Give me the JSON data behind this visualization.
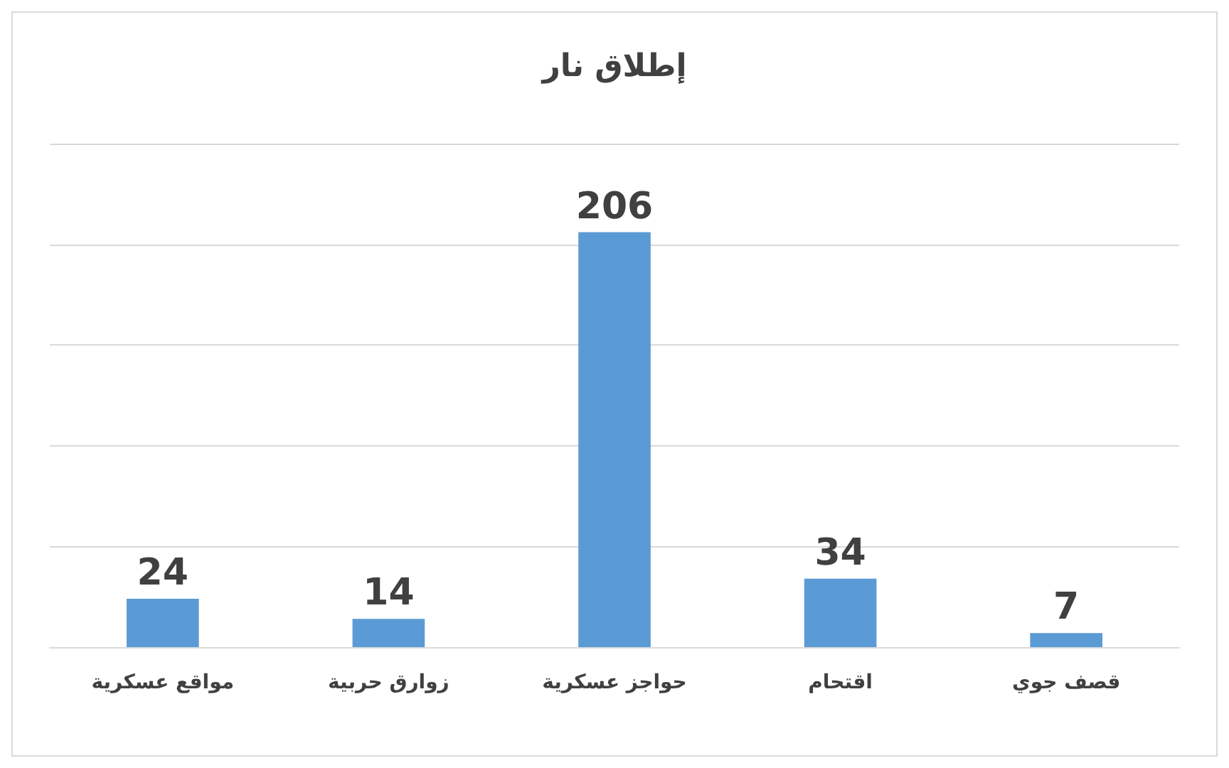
{
  "chart_data": {
    "type": "bar",
    "title": "إطلاق نار",
    "categories": [
      "مواقع عسكرية",
      "زوارق حربية",
      "حواجز عسكرية",
      "اقتحام",
      "قصف جوي"
    ],
    "values": [
      24,
      14,
      206,
      34,
      7
    ],
    "color": "#5b9bd5",
    "data_labels": true,
    "ylim": [
      0,
      250
    ],
    "yticks": [
      {
        "value": 0,
        "label": null
      },
      {
        "value": 50,
        "label": null
      },
      {
        "value": 100,
        "label": null
      },
      {
        "value": 150,
        "label": null
      },
      {
        "value": 200,
        "label": null
      },
      {
        "value": 250,
        "label": null
      }
    ],
    "grid": "y",
    "tick_labels": "x"
  }
}
